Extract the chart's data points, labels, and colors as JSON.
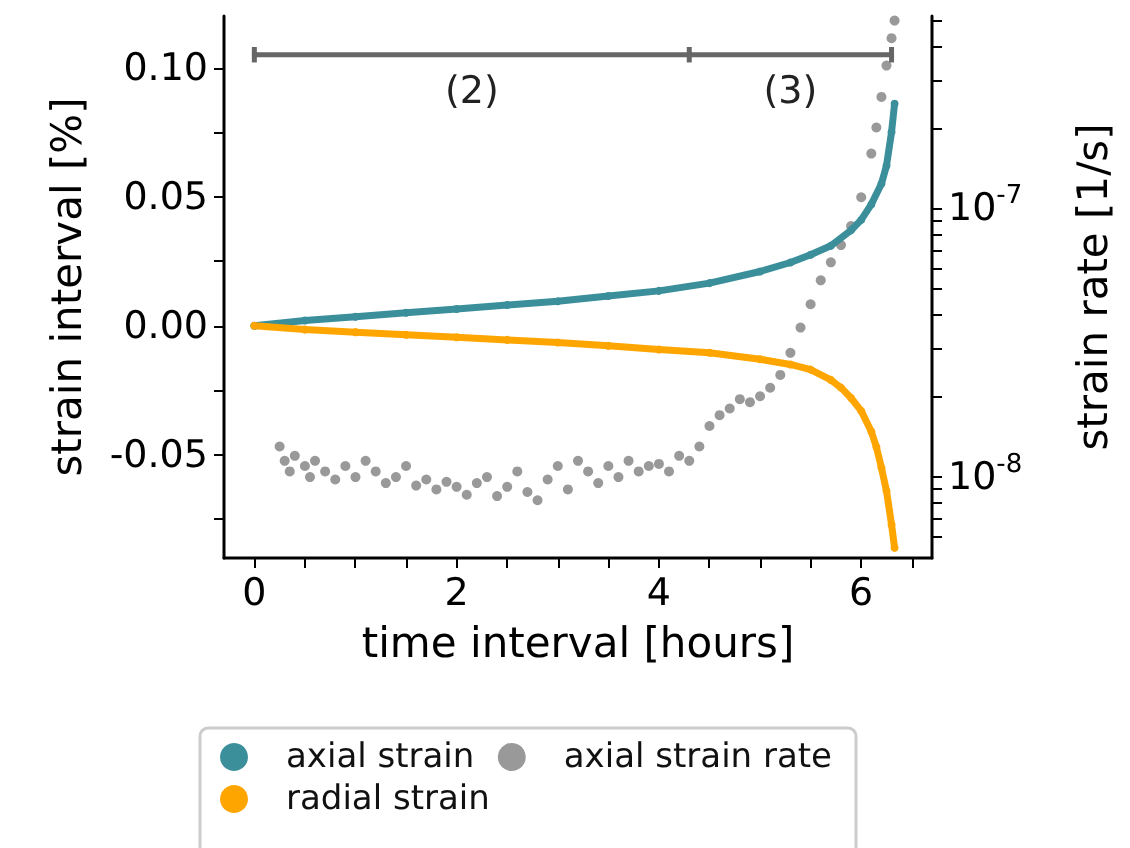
{
  "chart_data": {
    "type": "line",
    "xlabel": "time interval [hours]",
    "ylabel": "strain interval [%]",
    "y2label": "strain rate [1/s]",
    "xlim": [
      -0.3,
      6.7
    ],
    "xticks": [
      0,
      {
        "value": 0.5,
        "label": null
      },
      {
        "value": 1,
        "label": null
      },
      {
        "value": 1.5,
        "label": null
      },
      2,
      {
        "value": 2.5,
        "label": null
      },
      {
        "value": 3,
        "label": null
      },
      {
        "value": 3.5,
        "label": null
      },
      4,
      {
        "value": 4.5,
        "label": null
      },
      {
        "value": 5,
        "label": null
      },
      {
        "value": 5.5,
        "label": null
      },
      6,
      {
        "value": 6.5,
        "label": null
      }
    ],
    "ylim": [
      -0.09,
      0.12
    ],
    "yticks": [
      {
        "value": -0.075,
        "label": null
      },
      -0.05,
      {
        "value": -0.025,
        "label": null
      },
      {
        "value": 0,
        "label": "0.00"
      },
      {
        "value": 0.025,
        "label": null
      },
      0.05,
      {
        "value": 0.075,
        "label": null
      },
      {
        "value": 0.1,
        "label": "0.10"
      }
    ],
    "y2lim": [
      5e-09,
      5.2e-07
    ],
    "y2ticks": [
      {
        "value": 6e-09,
        "label": null
      },
      {
        "value": 7e-09,
        "label": null
      },
      {
        "value": 8e-09,
        "label": null
      },
      {
        "value": 9e-09,
        "label": null
      },
      {
        "value": 1e-08,
        "label": "10$^{-8}$"
      },
      {
        "value": 2e-08,
        "label": null
      },
      {
        "value": 3e-08,
        "label": null
      },
      {
        "value": 4e-08,
        "label": null
      },
      {
        "value": 5e-08,
        "label": null
      },
      {
        "value": 6e-08,
        "label": null
      },
      {
        "value": 7e-08,
        "label": null
      },
      {
        "value": 8e-08,
        "label": null
      },
      {
        "value": 9e-08,
        "label": null
      },
      {
        "value": 1e-07,
        "label": "10$^{-7}$"
      },
      {
        "value": 2e-07,
        "label": null
      },
      {
        "value": 3e-07,
        "label": null
      },
      {
        "value": 4e-07,
        "label": null
      },
      {
        "value": 5e-07,
        "label": null
      }
    ],
    "log": "y2",
    "grid": false,
    "legend": "bottom",
    "marker": "circle",
    "annotations": [
      "(2)",
      "(3)"
    ],
    "series": [
      {
        "color": "#666666",
        "marker": "none",
        "x": [
          0,
          4.3,
          6.3
        ],
        "values": [
          0.105,
          0.105,
          0.105
        ],
        "errors": [
          0.003,
          0.003,
          0.003
        ]
      },
      {
        "name": "axial strain",
        "color": "#3a8f9b",
        "x": [
          0,
          0.5,
          1,
          1.5,
          2,
          2.5,
          3,
          3.5,
          4,
          4.5,
          5,
          5.3,
          5.5,
          5.7,
          5.9,
          6.0,
          6.1,
          6.2,
          6.25,
          6.3,
          6.33
        ],
        "values": [
          0,
          0.002,
          0.0035,
          0.005,
          0.0065,
          0.008,
          0.0095,
          0.0115,
          0.0135,
          0.0165,
          0.021,
          0.0245,
          0.0275,
          0.031,
          0.037,
          0.041,
          0.047,
          0.055,
          0.062,
          0.075,
          0.086
        ]
      },
      {
        "name": "radial strain",
        "color": "#ffa500",
        "x": [
          0,
          0.5,
          1,
          1.5,
          2,
          2.5,
          3,
          3.5,
          4,
          4.5,
          5,
          5.3,
          5.5,
          5.7,
          5.8,
          5.9,
          6.0,
          6.1,
          6.15,
          6.2,
          6.25,
          6.3,
          6.33
        ],
        "values": [
          0,
          -0.0015,
          -0.0025,
          -0.0035,
          -0.0045,
          -0.0055,
          -0.0065,
          -0.0078,
          -0.0092,
          -0.0105,
          -0.013,
          -0.015,
          -0.017,
          -0.021,
          -0.024,
          -0.028,
          -0.033,
          -0.041,
          -0.047,
          -0.055,
          -0.064,
          -0.077,
          -0.086
        ]
      },
      {
        "name": "axial strain rate",
        "type": "scatter",
        "axis": "y2",
        "color": "#808080",
        "x": [
          0.25,
          0.3,
          0.35,
          0.4,
          0.5,
          0.55,
          0.6,
          0.7,
          0.8,
          0.9,
          1.0,
          1.1,
          1.2,
          1.3,
          1.4,
          1.5,
          1.6,
          1.7,
          1.8,
          1.9,
          2.0,
          2.1,
          2.2,
          2.3,
          2.4,
          2.5,
          2.6,
          2.7,
          2.8,
          2.9,
          3.0,
          3.1,
          3.2,
          3.3,
          3.4,
          3.5,
          3.6,
          3.7,
          3.8,
          3.9,
          4.0,
          4.1,
          4.2,
          4.3,
          4.4,
          4.5,
          4.6,
          4.7,
          4.8,
          4.9,
          5.0,
          5.1,
          5.2,
          5.3,
          5.4,
          5.5,
          5.6,
          5.7,
          5.8,
          5.9,
          6.0,
          6.1,
          6.15,
          6.2,
          6.25,
          6.3,
          6.33
        ],
        "values": [
          1.3e-08,
          1.15e-08,
          1.05e-08,
          1.2e-08,
          1.1e-08,
          1e-08,
          1.15e-08,
          1.05e-08,
          9.8e-09,
          1.1e-08,
          1e-08,
          1.15e-08,
          1.05e-08,
          9.5e-09,
          1e-08,
          1.1e-08,
          9.3e-09,
          9.8e-09,
          9e-09,
          9.6e-09,
          9.2e-09,
          8.6e-09,
          9.5e-09,
          1e-08,
          8.5e-09,
          9.2e-09,
          1.05e-08,
          8.8e-09,
          8.2e-09,
          9.8e-09,
          1.1e-08,
          9e-09,
          1.15e-08,
          1.05e-08,
          9.5e-09,
          1.1e-08,
          1e-08,
          1.15e-08,
          1.05e-08,
          1.1e-08,
          1.12e-08,
          1.05e-08,
          1.2e-08,
          1.15e-08,
          1.3e-08,
          1.55e-08,
          1.7e-08,
          1.8e-08,
          1.95e-08,
          1.9e-08,
          2e-08,
          2.15e-08,
          2.4e-08,
          2.9e-08,
          3.6e-08,
          4.4e-08,
          5.4e-08,
          6.3e-08,
          7.3e-08,
          8.6e-08,
          1.1e-07,
          1.6e-07,
          2e-07,
          2.6e-07,
          3.4e-07,
          4.3e-07,
          5e-07
        ]
      }
    ]
  }
}
